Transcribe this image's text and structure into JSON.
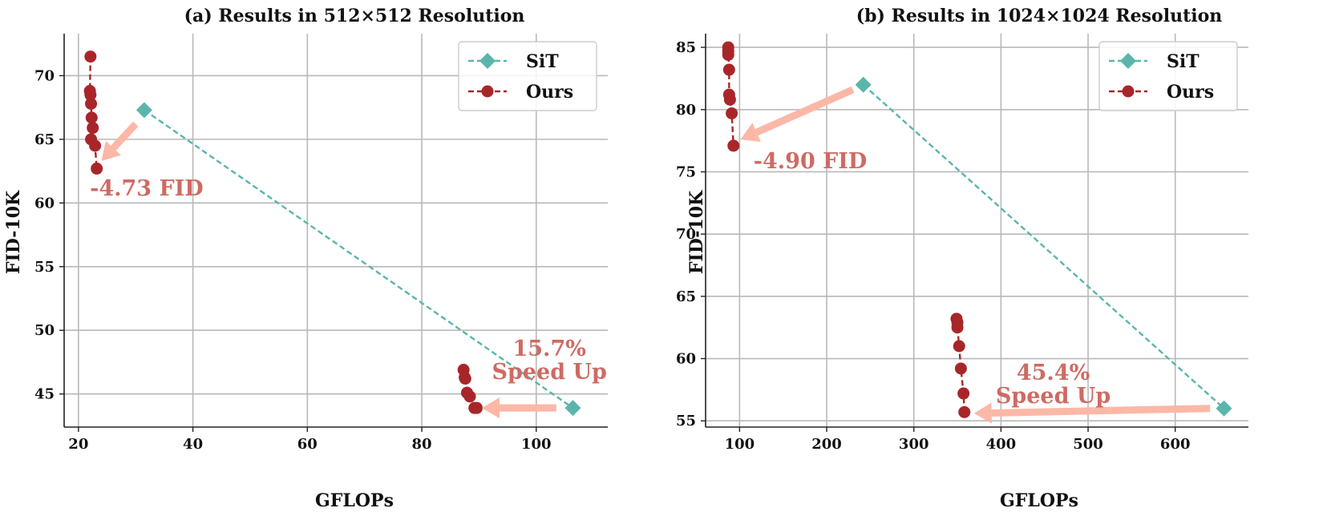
{
  "colors": {
    "sit": "#5bb5ab",
    "ours": "#a8262a",
    "arrow": "#fbb8a6",
    "annotation": "#cd6b63",
    "grid": "#b9b9b9",
    "axis": "#222222"
  },
  "chart_data": [
    {
      "type": "line",
      "title": "(a) Results in 512×512 Resolution",
      "xlabel": "GFLOPs",
      "ylabel": "FID-10K",
      "xlim": [
        17.5,
        112.5
      ],
      "ylim": [
        42.4,
        73.3
      ],
      "xticks": [
        20,
        40,
        60,
        80,
        100
      ],
      "yticks": [
        45,
        50,
        55,
        60,
        65,
        70
      ],
      "grid": true,
      "legend_position": "top-right",
      "series": [
        {
          "name": "SiT",
          "marker": "diamond",
          "line": "dashed",
          "x": [
            31.5,
            106.4
          ],
          "y": [
            67.3,
            43.9
          ]
        },
        {
          "name": "Ours",
          "marker": "circle",
          "line": "dashed",
          "segments": [
            {
              "x": [
                22.1,
                22.0,
                22.1,
                22.2,
                22.3,
                22.5,
                22.2,
                22.9,
                23.2
              ],
              "y": [
                71.5,
                68.8,
                68.5,
                67.8,
                66.7,
                65.9,
                65.0,
                64.5,
                62.7
              ]
            },
            {
              "x": [
                87.3,
                87.5,
                87.6,
                87.9,
                88.4,
                89.2,
                89.6
              ],
              "y": [
                46.9,
                46.3,
                46.2,
                45.1,
                44.8,
                43.9,
                43.9
              ]
            }
          ]
        }
      ],
      "annotations": [
        {
          "lines": [
            "-4.73 FID"
          ],
          "arrow_from": [
            30.0,
            66.2
          ],
          "arrow_to": [
            24.0,
            63.3
          ],
          "text_at": [
            22.0,
            60.6
          ],
          "anchor": "start"
        },
        {
          "lines": [
            "15.7%",
            "Speed Up"
          ],
          "arrow_from": [
            103.5,
            43.9
          ],
          "arrow_to": [
            90.5,
            43.9
          ],
          "text_at": [
            102.3,
            48.0
          ],
          "anchor": "middle"
        }
      ]
    },
    {
      "type": "line",
      "title": "(b) Results in 1024×1024 Resolution",
      "xlabel": "GFLOPs",
      "ylabel": "FID-10K",
      "xlim": [
        61,
        684
      ],
      "ylim": [
        54.5,
        86.1
      ],
      "xticks": [
        100,
        200,
        300,
        400,
        500,
        600
      ],
      "yticks": [
        55,
        60,
        65,
        70,
        75,
        80,
        85
      ],
      "grid": true,
      "legend_position": "top-right",
      "series": [
        {
          "name": "SiT",
          "marker": "diamond",
          "line": "dashed",
          "x": [
            242,
            656
          ],
          "y": [
            82.0,
            56.0
          ]
        },
        {
          "name": "Ours",
          "marker": "circle",
          "line": "dashed",
          "segments": [
            {
              "x": [
                87,
                87,
                87,
                88,
                88,
                89,
                91,
                93
              ],
              "y": [
                85.0,
                84.7,
                84.4,
                83.2,
                81.2,
                80.8,
                79.7,
                77.1
              ]
            },
            {
              "x": [
                349,
                350,
                350,
                352,
                354,
                357,
                358
              ],
              "y": [
                63.2,
                62.9,
                62.5,
                61.0,
                59.2,
                57.2,
                55.7
              ]
            }
          ]
        }
      ],
      "annotations": [
        {
          "lines": [
            "-4.90 FID"
          ],
          "arrow_from": [
            230,
            81.6
          ],
          "arrow_to": [
            101,
            77.6
          ],
          "text_at": [
            116,
            75.3
          ],
          "anchor": "start"
        },
        {
          "lines": [
            "45.4%",
            "Speed Up"
          ],
          "arrow_from": [
            640,
            56.0
          ],
          "arrow_to": [
            369,
            55.6
          ],
          "text_at": [
            460,
            58.3
          ],
          "anchor": "middle"
        }
      ]
    }
  ]
}
